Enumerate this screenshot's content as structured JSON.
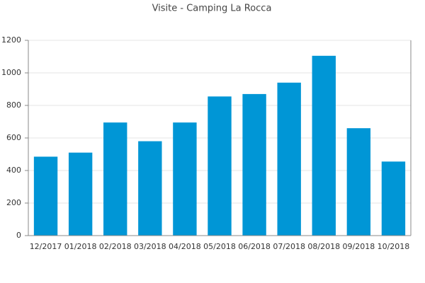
{
  "chart_data": {
    "type": "bar",
    "title": "Visite - Camping La Rocca",
    "categories": [
      "12/2017",
      "01/2018",
      "02/2018",
      "03/2018",
      "04/2018",
      "05/2018",
      "06/2018",
      "07/2018",
      "08/2018",
      "09/2018",
      "10/2018"
    ],
    "values": [
      485,
      510,
      695,
      580,
      695,
      855,
      870,
      940,
      1105,
      660,
      455
    ],
    "color": "#0096d6",
    "ylim": [
      0,
      1200
    ],
    "yticks": [
      0,
      200,
      400,
      600,
      800,
      1000,
      1200
    ],
    "grid": true
  }
}
